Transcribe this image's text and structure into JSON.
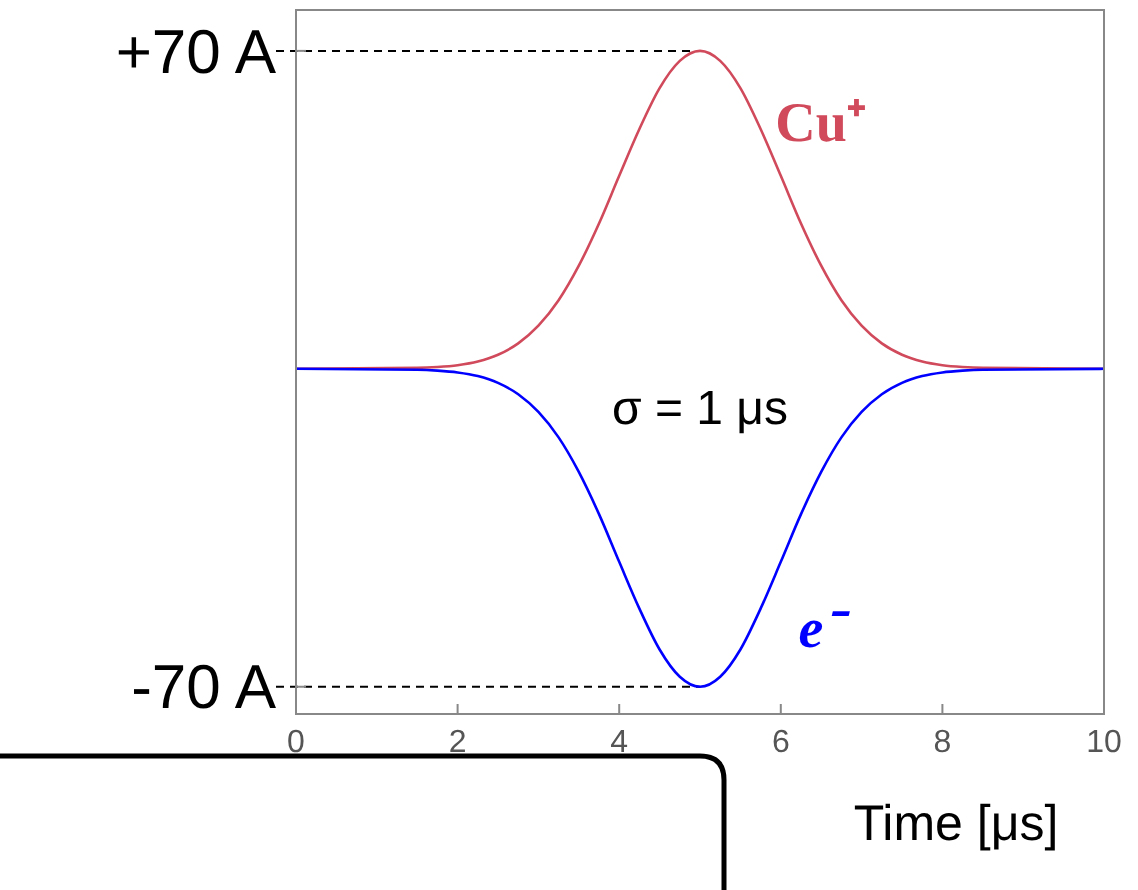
{
  "chart_data": {
    "type": "line",
    "xlabel": "Time  [μs]",
    "x": [
      0,
      1.5,
      1.75,
      2,
      2.25,
      2.5,
      2.75,
      3,
      3.25,
      3.5,
      3.75,
      4,
      4.25,
      4.5,
      4.75,
      5,
      5.25,
      5.5,
      5.75,
      6,
      6.25,
      6.5,
      6.75,
      7,
      7.25,
      7.5,
      7.75,
      8,
      8.25,
      8.5,
      10
    ],
    "series": [
      {
        "name": "Cu⁺",
        "color": "#d04a5c",
        "values": [
          0,
          0.2,
          0.4,
          0.8,
          1.6,
          3.1,
          5.6,
          9.5,
          15.1,
          22.7,
          32.0,
          42.5,
          52.8,
          61.8,
          67.8,
          70,
          67.8,
          61.8,
          52.8,
          42.5,
          32.0,
          22.7,
          15.1,
          9.5,
          5.6,
          3.1,
          1.6,
          0.8,
          0.4,
          0.2,
          0
        ]
      },
      {
        "name": "e⁻",
        "color": "#0000ff",
        "values": [
          0,
          -0.2,
          -0.4,
          -0.8,
          -1.6,
          -3.1,
          -5.6,
          -9.5,
          -15.1,
          -22.7,
          -32.0,
          -42.5,
          -52.8,
          -61.8,
          -67.8,
          -70,
          -67.8,
          -61.8,
          -52.8,
          -42.5,
          -32.0,
          -22.7,
          -15.1,
          -9.5,
          -5.6,
          -3.1,
          -1.6,
          -0.8,
          -0.4,
          -0.2,
          0
        ]
      }
    ],
    "xlim": [
      0,
      10
    ],
    "xticks": [
      0,
      2,
      4,
      6,
      8,
      10
    ],
    "ylim": [
      -76,
      79
    ],
    "yticks": [
      {
        "value": 70,
        "label": "+70 A"
      },
      {
        "value": -70,
        "label": "-70 A"
      }
    ],
    "ref_lines": [
      {
        "axis": "y",
        "value": 70,
        "line_style": "dashed",
        "color": "#000000"
      },
      {
        "axis": "y",
        "value": -70,
        "line_style": "dashed",
        "color": "#000000"
      }
    ],
    "annotations": [
      "σ = 1 μs"
    ],
    "grid": false,
    "legend": false,
    "line_style": "solid"
  }
}
